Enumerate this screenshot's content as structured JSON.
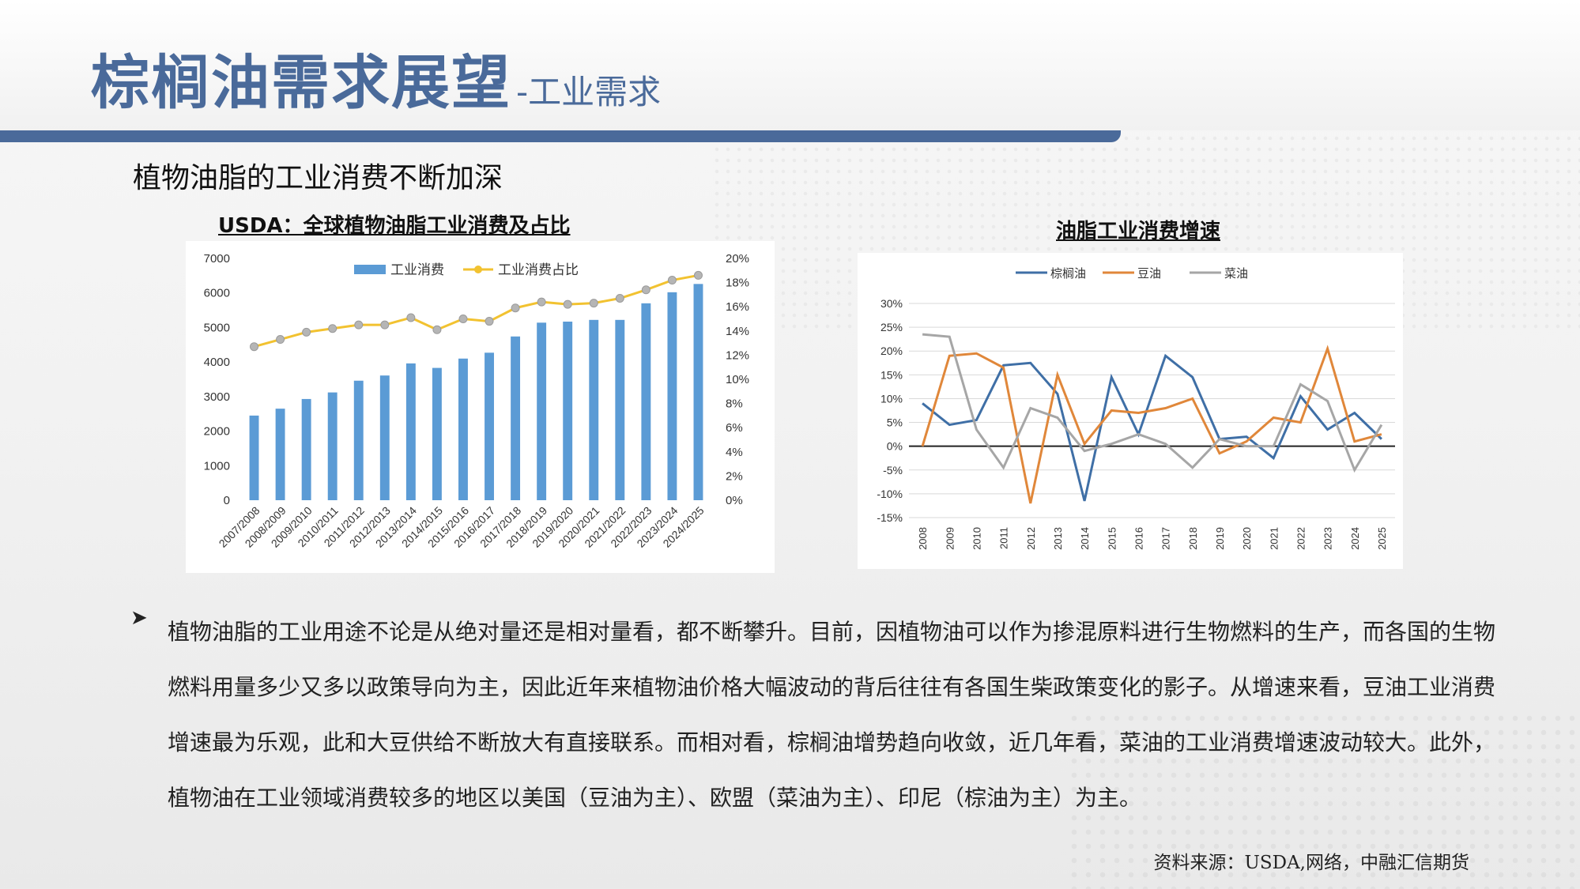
{
  "header": {
    "title_main": "棕榈油需求展望",
    "title_sub": "-工业需求"
  },
  "section_heading": "植物油脂的工业消费不断加深",
  "left_chart_title": "USDA：全球植物油脂工业消费及占比",
  "right_chart_title": "油脂工业消费增速",
  "chart_data": [
    {
      "type": "bar",
      "title": "USDA：全球植物油脂工业消费及占比",
      "categories": [
        "2007/2008",
        "2008/2009",
        "2009/2010",
        "2010/2011",
        "2011/2012",
        "2012/2013",
        "2013/2014",
        "2014/2015",
        "2015/2016",
        "2016/2017",
        "2017/2018",
        "2018/2019",
        "2019/2020",
        "2020/2021",
        "2021/2022",
        "2022/2023",
        "2023/2024",
        "2024/2025"
      ],
      "series": [
        {
          "name": "工业消费",
          "type": "bar",
          "axis": "left",
          "color": "#5b9bd5",
          "values": [
            2450,
            2650,
            2930,
            3120,
            3460,
            3610,
            3960,
            3830,
            4100,
            4270,
            4740,
            5140,
            5170,
            5220,
            5220,
            5700,
            6020,
            6260
          ]
        },
        {
          "name": "工业消费占比",
          "type": "line",
          "axis": "right",
          "color": "#f2c230",
          "values": [
            12.7,
            13.3,
            13.9,
            14.2,
            14.5,
            14.5,
            15.1,
            14.1,
            15.0,
            14.8,
            15.9,
            16.4,
            16.2,
            16.3,
            16.7,
            17.4,
            18.2,
            18.6
          ]
        }
      ],
      "left_axis": {
        "min": 0,
        "max": 7000,
        "ticks": [
          "0",
          "1000",
          "2000",
          "3000",
          "4000",
          "5000",
          "6000",
          "7000"
        ]
      },
      "right_axis": {
        "min": 0,
        "max": 20,
        "ticks": [
          "0%",
          "2%",
          "4%",
          "6%",
          "8%",
          "10%",
          "12%",
          "14%",
          "16%",
          "18%",
          "20%"
        ]
      },
      "legend_position": "top"
    },
    {
      "type": "line",
      "title": "油脂工业消费增速",
      "x": [
        "2008",
        "2009",
        "2010",
        "2011",
        "2012",
        "2013",
        "2014",
        "2015",
        "2016",
        "2017",
        "2018",
        "2019",
        "2020",
        "2021",
        "2022",
        "2023",
        "2024",
        "2025"
      ],
      "series": [
        {
          "name": "棕榈油",
          "color": "#3f6fa6",
          "values": [
            9,
            4.5,
            5.5,
            17,
            17.5,
            11,
            -11.5,
            14.5,
            2.5,
            19,
            14.5,
            1.5,
            2,
            -2.5,
            10.5,
            3.5,
            7,
            1.5
          ]
        },
        {
          "name": "豆油",
          "color": "#e0873a",
          "values": [
            0,
            19,
            19.5,
            16.5,
            -12,
            15,
            0.5,
            7.5,
            7,
            8,
            10,
            -1.5,
            1,
            6,
            5,
            20.5,
            1,
            2.5
          ]
        },
        {
          "name": "菜油",
          "color": "#a6a6a6",
          "values": [
            23.5,
            23,
            3.5,
            -4.5,
            8,
            6,
            -1,
            0.5,
            2.5,
            0.5,
            -4.5,
            1.5,
            0,
            0,
            13,
            9.5,
            -5,
            4.5
          ]
        }
      ],
      "y_axis": {
        "min": -15,
        "max": 30,
        "ticks": [
          "30%",
          "25%",
          "20%",
          "15%",
          "10%",
          "5%",
          "0%",
          "-5%",
          "-10%",
          "-15%"
        ]
      },
      "legend_position": "top",
      "grid": true
    }
  ],
  "body_text": "植物油脂的工业用途不论是从绝对量还是相对量看，都不断攀升。目前，因植物油可以作为掺混原料进行生物燃料的生产，而各国的生物燃料用量多少又多以政策导向为主，因此近年来植物油价格大幅波动的背后往往有各国生柴政策变化的影子。从增速来看，豆油工业消费增速最为乐观，此和大豆供给不断放大有直接联系。而相对看，棕榈油增势趋向收敛，近几年看，菜油的工业消费增速波动较大。此外，植物油在工业领域消费较多的地区以美国（豆油为主）、欧盟（菜油为主）、印尼（棕油为主）为主。",
  "bullet_icon": "arrow-bullet-icon",
  "source": "资料来源：USDA,网络，中融汇信期货"
}
